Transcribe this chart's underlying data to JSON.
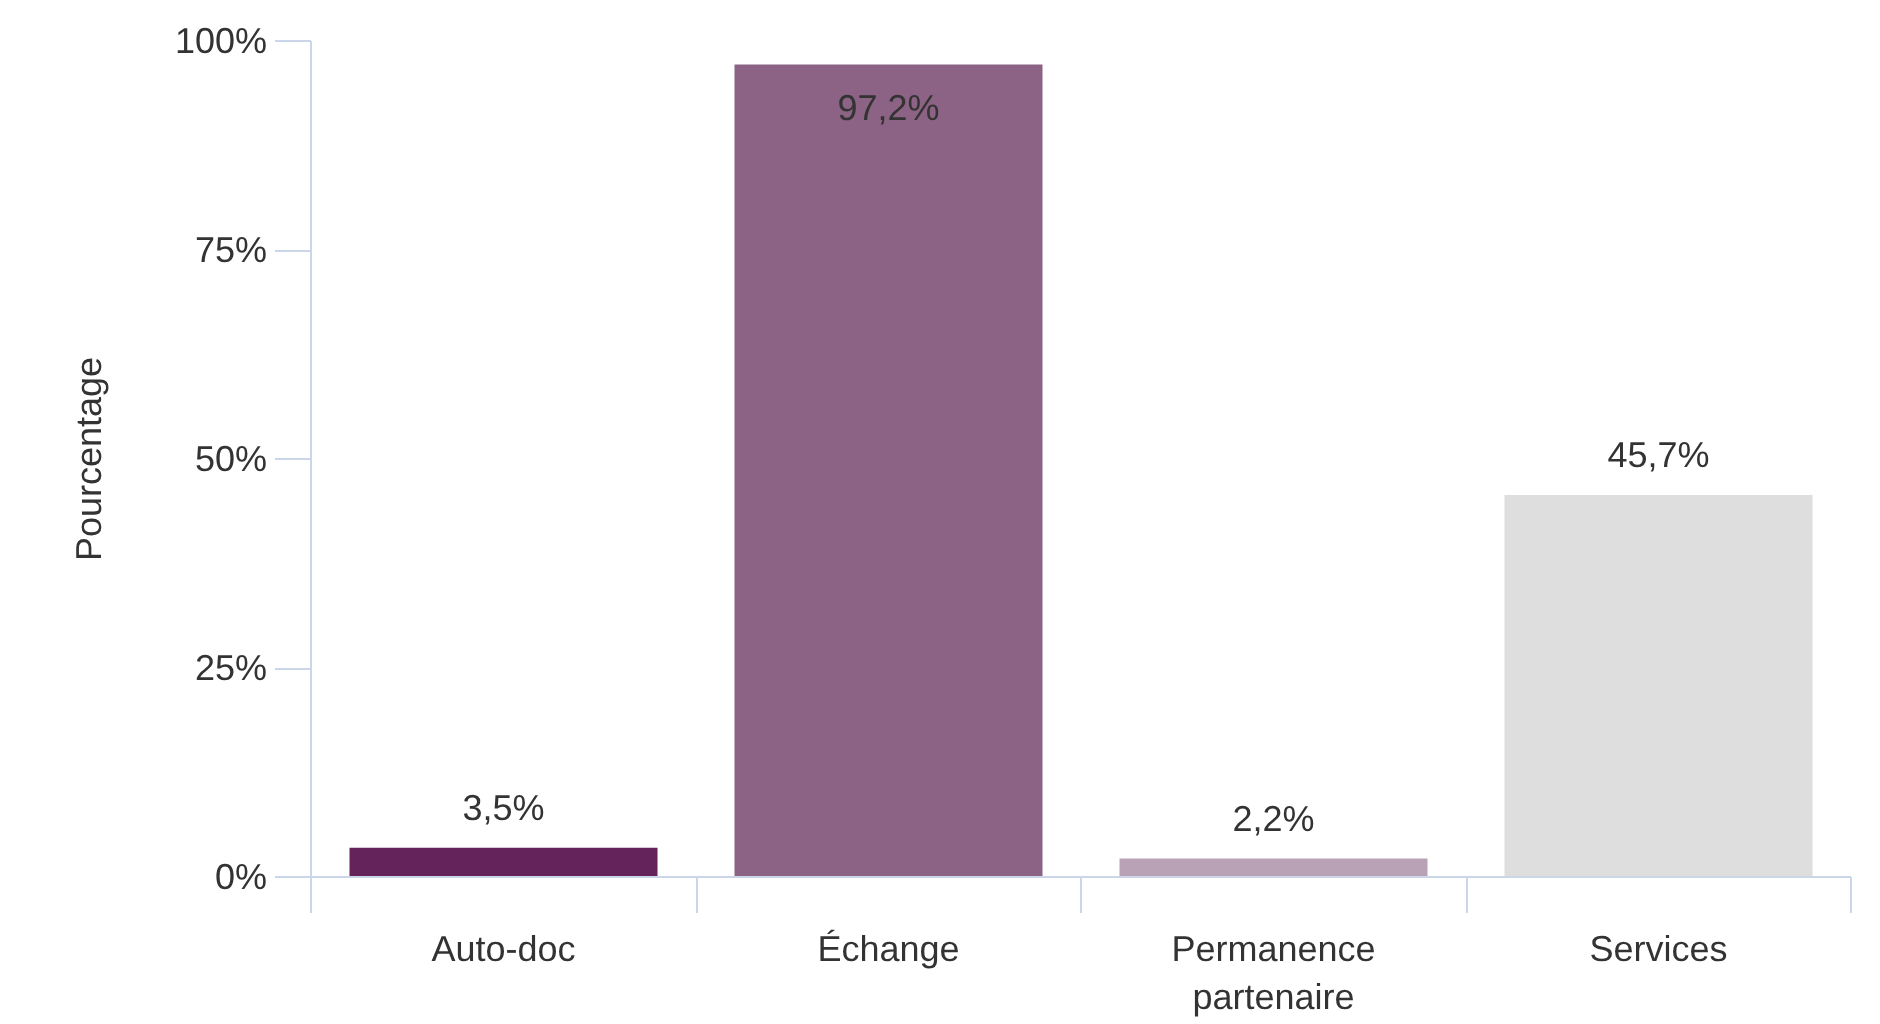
{
  "chart_data": {
    "type": "bar",
    "ylabel": "Pourcentage",
    "categories": [
      "Auto-doc",
      "Échange",
      "Permanence partenaire",
      "Services"
    ],
    "values": [
      3.5,
      97.2,
      2.2,
      45.7
    ],
    "colors": [
      "#64235a",
      "#8c6384",
      "#b9a1b6",
      "#dedede"
    ],
    "value_labels": [
      "3,5%",
      "97,2%",
      "2,2%",
      "45,7%"
    ],
    "ylim": [
      0,
      100
    ],
    "yticks": [
      {
        "value": 0,
        "label": "0%"
      },
      {
        "value": 25,
        "label": "25%"
      },
      {
        "value": 50,
        "label": "50%"
      },
      {
        "value": 75,
        "label": "75%"
      },
      {
        "value": 100,
        "label": "100%"
      }
    ]
  }
}
